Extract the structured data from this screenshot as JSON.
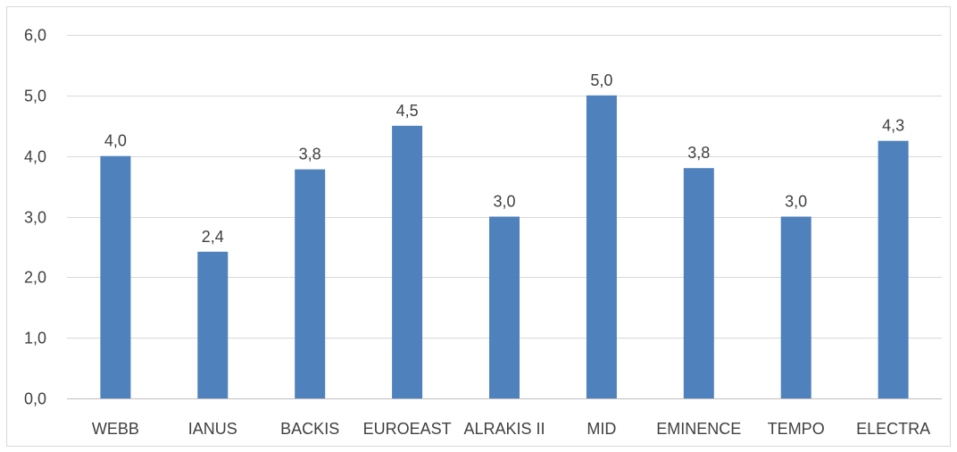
{
  "chart_data": {
    "type": "bar",
    "title": "",
    "xlabel": "",
    "ylabel": "",
    "categories": [
      "WEBB",
      "IANUS",
      "BACKIS",
      "EUROEAST",
      "ALRAKIS II",
      "MID",
      "EMINENCE",
      "TEMPO",
      "ELECTRA"
    ],
    "values": [
      4.0,
      2.42,
      3.78,
      4.5,
      3.0,
      5.0,
      3.8,
      3.0,
      4.25
    ],
    "data_labels": [
      "4,0",
      "2,4",
      "3,8",
      "4,5",
      "3,0",
      "5,0",
      "3,8",
      "3,0",
      "4,3"
    ],
    "ylim": [
      0,
      6
    ],
    "yticks": [
      0,
      1,
      2,
      3,
      4,
      5,
      6
    ],
    "ytick_labels": [
      "0,0",
      "1,0",
      "2,0",
      "3,0",
      "4,0",
      "5,0",
      "6,0"
    ],
    "grid": true,
    "legend": "none",
    "bar_color": "#4f81bd"
  }
}
